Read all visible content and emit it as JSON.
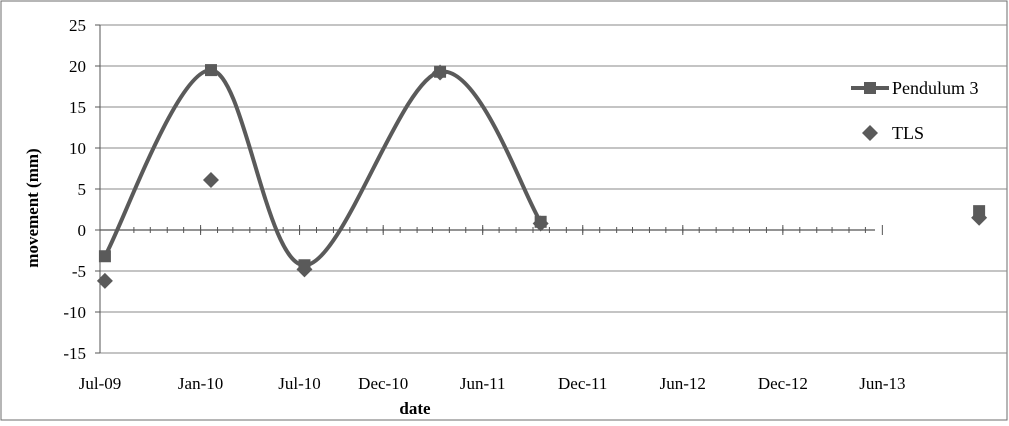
{
  "chart_data": {
    "type": "line",
    "xlabel": "date",
    "ylabel": "movement (mm)",
    "ylim": [
      -15,
      25
    ],
    "yticks": [
      -15,
      -10,
      -5,
      0,
      5,
      10,
      15,
      20,
      25
    ],
    "xlim": [
      "2009-07-01",
      "2014-01-15"
    ],
    "xtick_labels": [
      {
        "date": "2009-07-01",
        "label": "Jul-09"
      },
      {
        "date": "2010-01-01",
        "label": "Jan-10"
      },
      {
        "date": "2010-07-01",
        "label": "Jul-10"
      },
      {
        "date": "2010-12-01",
        "label": "Dec-10"
      },
      {
        "date": "2011-06-01",
        "label": "Jun-11"
      },
      {
        "date": "2011-12-01",
        "label": "Dec-11"
      },
      {
        "date": "2012-06-01",
        "label": "Jun-12"
      },
      {
        "date": "2012-12-01",
        "label": "Dec-12"
      },
      {
        "date": "2013-06-01",
        "label": "Jun-13"
      }
    ],
    "grid": "horizontal",
    "legend_position": "right",
    "series": [
      {
        "name": "Pendulum 3",
        "style": "smooth-line-square-markers",
        "color": "#5a5a5a",
        "points": [
          {
            "x": "2009-07-10",
            "y": -3.2
          },
          {
            "x": "2010-01-20",
            "y": 19.5
          },
          {
            "x": "2010-07-10",
            "y": -4.3
          },
          {
            "x": "2011-03-15",
            "y": 19.3
          },
          {
            "x": "2011-09-15",
            "y": 1.0
          }
        ],
        "unconnected_points": [
          {
            "x": "2013-11-25",
            "y": 2.3
          }
        ]
      },
      {
        "name": "TLS",
        "style": "diamond-markers",
        "color": "#5a5a5a",
        "points": [
          {
            "x": "2009-07-10",
            "y": -6.2
          },
          {
            "x": "2010-01-20",
            "y": 6.1
          },
          {
            "x": "2010-07-10",
            "y": -4.8
          },
          {
            "x": "2011-03-15",
            "y": 19.2
          },
          {
            "x": "2011-09-15",
            "y": 0.8
          },
          {
            "x": "2013-11-25",
            "y": 1.5
          }
        ]
      }
    ]
  }
}
